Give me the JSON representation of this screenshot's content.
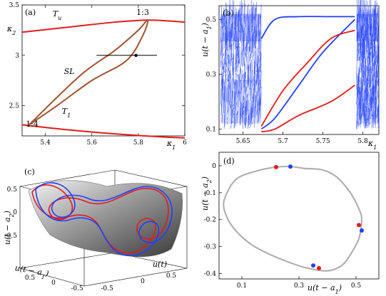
{
  "chart_data": [
    {
      "panel": "(a)",
      "type": "line",
      "xlabel": "κ1",
      "ylabel": "κ2",
      "xlim": [
        5.3,
        6.0
      ],
      "ylim": [
        2.2,
        3.5
      ],
      "x_ticks": [
        "5.4",
        "5.6",
        "5.8",
        "6"
      ],
      "y_ticks": [
        "2.5",
        "3",
        "3.5"
      ],
      "annotations": [
        "T_u",
        "T_1",
        "SL",
        "1:3",
        "1:4"
      ],
      "series": [
        {
          "name": "T_u",
          "color": "#e41a1c",
          "points": [
            [
              5.3,
              3.23
            ],
            [
              5.5,
              3.28
            ],
            [
              5.7,
              3.33
            ],
            [
              5.85,
              3.35
            ],
            [
              6.0,
              3.33
            ]
          ]
        },
        {
          "name": "T_1",
          "color": "#e41a1c",
          "points": [
            [
              5.3,
              2.31
            ],
            [
              5.5,
              2.26
            ],
            [
              5.7,
              2.22
            ],
            [
              5.9,
              2.19
            ],
            [
              6.0,
              2.18
            ]
          ]
        },
        {
          "name": "SL",
          "color": "#a0522d",
          "points": [
            [
              5.33,
              2.31
            ],
            [
              5.45,
              2.5
            ],
            [
              5.6,
              2.75
            ],
            [
              5.75,
              2.95
            ],
            [
              5.82,
              3.2
            ],
            [
              5.84,
              3.35
            ],
            [
              5.8,
              3.25
            ],
            [
              5.7,
              3.05
            ],
            [
              5.55,
              2.8
            ],
            [
              5.33,
              2.31
            ]
          ]
        }
      ],
      "segment": {
        "x": [
          5.62,
          5.88
        ],
        "y": 3.0,
        "marker_x": 5.79
      }
    },
    {
      "panel": "(b)",
      "type": "scatter",
      "xlabel": "κ1",
      "ylabel": "u(t − a1)",
      "xlim": [
        5.62,
        5.82
      ],
      "ylim": [
        0.08,
        0.55
      ],
      "x_ticks": [
        "5.65",
        "5.7",
        "5.75",
        "5.8"
      ],
      "y_ticks": [
        "0.1",
        "0.3",
        "0.5"
      ],
      "series": [
        {
          "name": "",
          "color": "#1f3fff",
          "branch_top": [
            [
              5.673,
              0.43
            ],
            [
              5.69,
              0.5
            ],
            [
              5.72,
              0.51
            ],
            [
              5.76,
              0.51
            ],
            [
              5.79,
              0.51
            ]
          ],
          "branch_bottom": [
            [
              5.673,
              0.1
            ],
            [
              5.69,
              0.14
            ],
            [
              5.72,
              0.26
            ],
            [
              5.75,
              0.38
            ],
            [
              5.79,
              0.5
            ]
          ]
        },
        {
          "name": "",
          "color": "#e41a1c",
          "branch_top": [
            [
              5.673,
              0.11
            ],
            [
              5.7,
              0.24
            ],
            [
              5.73,
              0.34
            ],
            [
              5.76,
              0.43
            ],
            [
              5.79,
              0.46
            ]
          ],
          "branch_bottom": [
            [
              5.673,
              0.09
            ],
            [
              5.69,
              0.1
            ],
            [
              5.72,
              0.15
            ],
            [
              5.76,
              0.2
            ],
            [
              5.79,
              0.26
            ]
          ]
        }
      ]
    },
    {
      "panel": "(c)",
      "type": "line",
      "xlabel": "u(t − a1)",
      "ylabel": "u(t − a2)",
      "zlabel": "u(t)",
      "x_ticks": [
        "-0.5",
        "0",
        "0.5"
      ],
      "y_ticks": [
        "-0.5",
        "0",
        "0.5"
      ],
      "z_ticks": [
        "-0.5",
        "0",
        "0.5"
      ]
    },
    {
      "panel": "(d)",
      "type": "line",
      "xlabel": "u(t − a1)",
      "ylabel": "u(t − a2)",
      "xlim": [
        0.02,
        0.58
      ],
      "ylim": [
        -0.42,
        0.05
      ],
      "x_ticks": [
        "0.1",
        "0.3",
        "0.5"
      ],
      "y_ticks": [
        "-0.4",
        "-0.3",
        "-0.2",
        "-0.1",
        "0"
      ],
      "closed_curve": [
        [
          0.04,
          -0.12
        ],
        [
          0.08,
          -0.05
        ],
        [
          0.15,
          -0.02
        ],
        [
          0.22,
          -0.005
        ],
        [
          0.27,
          -0.003
        ],
        [
          0.32,
          -0.01
        ],
        [
          0.38,
          -0.015
        ],
        [
          0.43,
          -0.04
        ],
        [
          0.48,
          -0.1
        ],
        [
          0.51,
          -0.16
        ],
        [
          0.52,
          -0.2
        ],
        [
          0.51,
          -0.27
        ],
        [
          0.48,
          -0.33
        ],
        [
          0.45,
          -0.37
        ],
        [
          0.4,
          -0.39
        ],
        [
          0.33,
          -0.38
        ],
        [
          0.27,
          -0.36
        ],
        [
          0.2,
          -0.33
        ],
        [
          0.13,
          -0.29
        ],
        [
          0.07,
          -0.23
        ],
        [
          0.04,
          -0.17
        ]
      ],
      "red_points": [
        [
          0.22,
          -0.005
        ],
        [
          0.51,
          -0.22
        ],
        [
          0.37,
          -0.38
        ]
      ],
      "blue_points": [
        [
          0.27,
          -0.003
        ],
        [
          0.52,
          -0.24
        ],
        [
          0.35,
          -0.37
        ]
      ]
    }
  ]
}
